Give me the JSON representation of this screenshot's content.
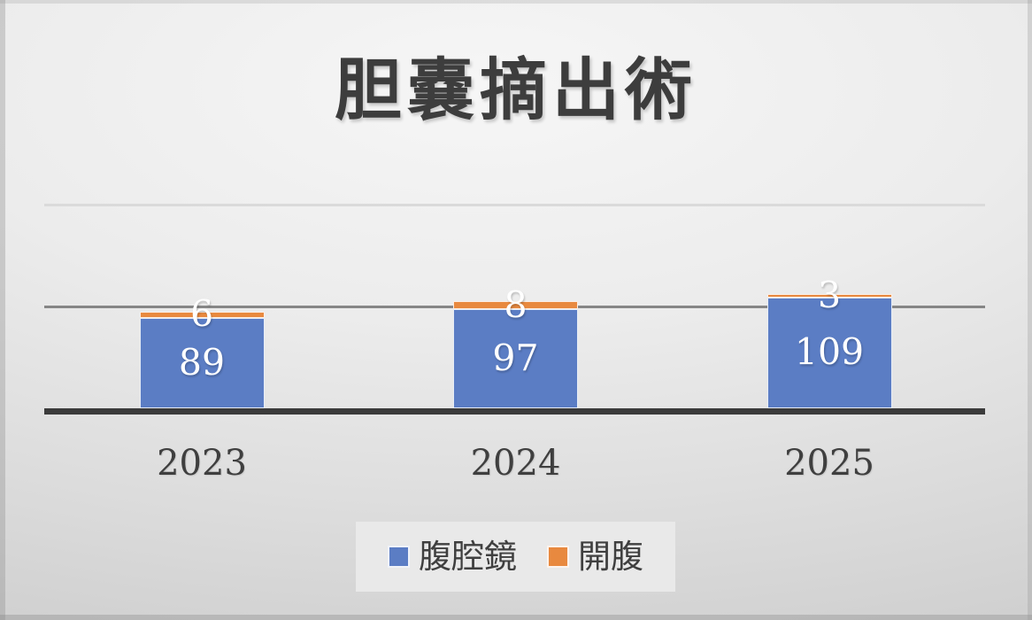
{
  "chart_data": {
    "type": "bar",
    "stacked": true,
    "title": "胆嚢摘出術",
    "categories": [
      "2023",
      "2024",
      "2025"
    ],
    "series": [
      {
        "name": "腹腔鏡",
        "color": "#5B7DC4",
        "values": [
          89,
          97,
          109
        ]
      },
      {
        "name": "開腹",
        "color": "#E8893F",
        "values": [
          6,
          8,
          3
        ]
      }
    ],
    "data_label_values": {
      "腹腔鏡": [
        "89",
        "97",
        "109"
      ],
      "開腹": [
        "6",
        "8",
        "3"
      ]
    },
    "xlabel": "",
    "ylabel": "",
    "ylim": [
      0,
      200
    ],
    "gridlines": [
      100,
      200
    ],
    "grid": "horizontal only, no tick labels",
    "legend_position": "bottom"
  },
  "colors": {
    "laparoscope_blue": "#5B7DC4",
    "open_orange": "#E8893F",
    "title_text": "#3D3D3D",
    "axis_line": "#3B3B3B",
    "gridline_major": "#868686",
    "gridline_minor": "#DADADA",
    "data_label_text": "#FFFFFF",
    "legend_background": "#E9E9E9",
    "slide_background": "#ECECEC"
  }
}
